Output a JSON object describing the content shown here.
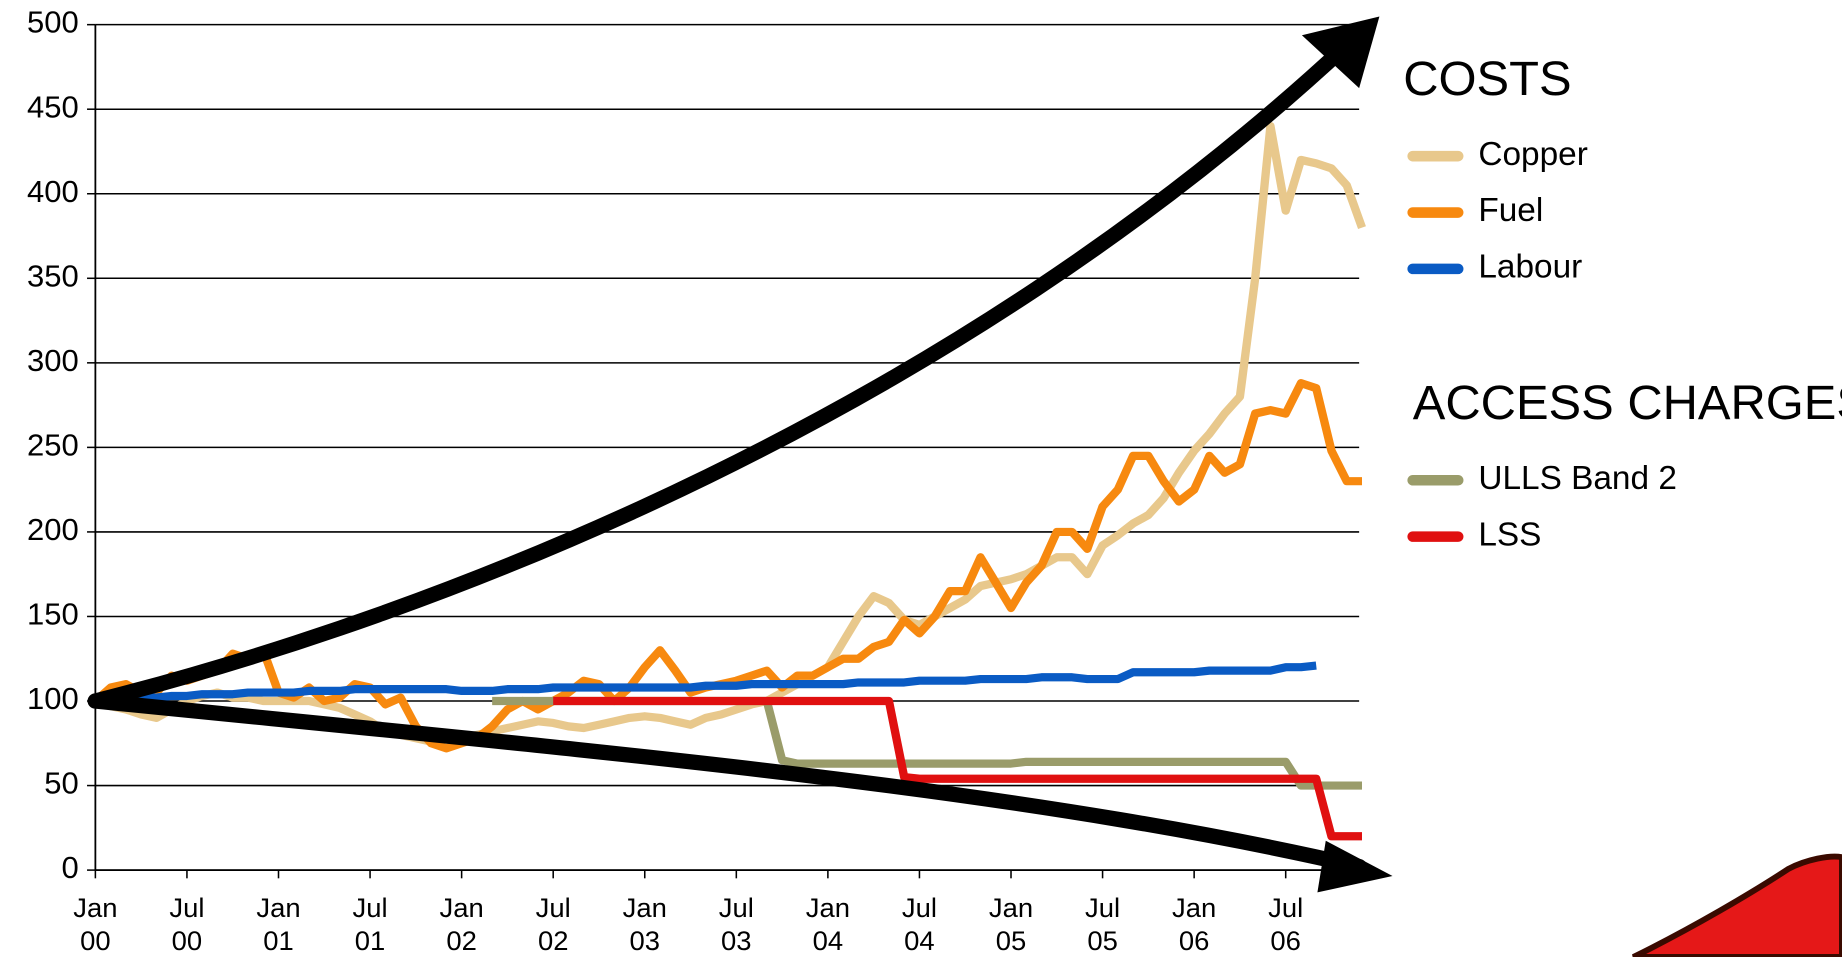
{
  "chart_data": {
    "type": "line",
    "categories": [
      "Jan 00",
      null,
      null,
      null,
      null,
      null,
      "Jul 00",
      null,
      null,
      null,
      null,
      null,
      "Jan 01",
      null,
      null,
      null,
      null,
      null,
      "Jul 01",
      null,
      null,
      null,
      null,
      null,
      "Jan 02",
      null,
      null,
      null,
      null,
      null,
      "Jul 02",
      null,
      null,
      null,
      null,
      null,
      "Jan 03",
      null,
      null,
      null,
      null,
      null,
      "Jul 03",
      null,
      null,
      null,
      null,
      null,
      "Jan 04",
      null,
      null,
      null,
      null,
      null,
      "Jul 04",
      null,
      null,
      null,
      null,
      null,
      "Jan 05",
      null,
      null,
      null,
      null,
      null,
      "Jul 05",
      null,
      null,
      null,
      null,
      null,
      "Jan 06",
      null,
      null,
      null,
      null,
      null,
      "Jul 06",
      null,
      null,
      null,
      null,
      null
    ],
    "ylim": [
      0,
      500
    ],
    "yticks": [
      0,
      50,
      100,
      150,
      200,
      250,
      300,
      350,
      400,
      450,
      500
    ],
    "grid": true,
    "series_groups": [
      {
        "title": "COSTS",
        "series": [
          {
            "name": "Copper",
            "color": "#e8c88c",
            "values": [
              100,
              97,
              95,
              92,
              90,
              95,
              100,
              103,
              105,
              102,
              102,
              100,
              100,
              100,
              100,
              98,
              96,
              92,
              88,
              82,
              80,
              78,
              76,
              76,
              78,
              80,
              82,
              84,
              86,
              88,
              87,
              85,
              84,
              86,
              88,
              90,
              91,
              90,
              88,
              86,
              90,
              92,
              95,
              98,
              100,
              105,
              110,
              115,
              120,
              135,
              150,
              162,
              158,
              148,
              145,
              150,
              155,
              160,
              168,
              170,
              172,
              175,
              180,
              185,
              185,
              175,
              192,
              198,
              205,
              210,
              220,
              235,
              248,
              258,
              270,
              280,
              350,
              440,
              390,
              420,
              418,
              415,
              405,
              380
            ]
          },
          {
            "name": "Fuel",
            "color": "#f7890f",
            "values": [
              100,
              108,
              110,
              105,
              105,
              115,
              112,
              115,
              118,
              128,
              125,
              130,
              105,
              102,
              108,
              100,
              102,
              110,
              108,
              98,
              102,
              85,
              75,
              72,
              75,
              78,
              85,
              95,
              100,
              95,
              100,
              105,
              112,
              110,
              100,
              108,
              120,
              130,
              118,
              105,
              108,
              110,
              112,
              115,
              118,
              108,
              115,
              115,
              120,
              125,
              125,
              132,
              135,
              148,
              140,
              150,
              165,
              165,
              185,
              170,
              155,
              170,
              180,
              200,
              200,
              190,
              215,
              225,
              245,
              245,
              230,
              218,
              225,
              245,
              235,
              240,
              270,
              272,
              270,
              288,
              285,
              248,
              230,
              230
            ]
          },
          {
            "name": "Labour",
            "color": "#0a5bc4",
            "values": [
              100,
              101,
              102,
              102,
              102,
              103,
              103,
              104,
              104,
              104,
              105,
              105,
              105,
              105,
              106,
              106,
              106,
              107,
              107,
              107,
              107,
              107,
              107,
              107,
              106,
              106,
              106,
              107,
              107,
              107,
              108,
              108,
              108,
              108,
              108,
              108,
              108,
              108,
              108,
              108,
              109,
              109,
              109,
              110,
              110,
              110,
              110,
              110,
              110,
              110,
              111,
              111,
              111,
              111,
              112,
              112,
              112,
              112,
              113,
              113,
              113,
              113,
              114,
              114,
              114,
              113,
              113,
              113,
              117,
              117,
              117,
              117,
              117,
              118,
              118,
              118,
              118,
              118,
              120,
              120,
              121,
              null,
              null,
              null
            ]
          }
        ]
      },
      {
        "title": "ACCESS CHARGES",
        "series": [
          {
            "name": "ULLS Band 2",
            "color": "#9a9c6a",
            "values": [
              null,
              null,
              null,
              null,
              null,
              null,
              null,
              null,
              null,
              null,
              null,
              null,
              null,
              null,
              null,
              null,
              null,
              null,
              null,
              null,
              null,
              null,
              null,
              null,
              null,
              null,
              100,
              100,
              100,
              100,
              100,
              100,
              100,
              100,
              100,
              100,
              100,
              100,
              100,
              100,
              100,
              100,
              100,
              100,
              100,
              65,
              63,
              63,
              63,
              63,
              63,
              63,
              63,
              63,
              63,
              63,
              63,
              63,
              63,
              63,
              63,
              64,
              64,
              64,
              64,
              64,
              64,
              64,
              64,
              64,
              64,
              64,
              64,
              64,
              64,
              64,
              64,
              64,
              64,
              50,
              50,
              50,
              50,
              50
            ]
          },
          {
            "name": "LSS",
            "color": "#e01010",
            "values": [
              null,
              null,
              null,
              null,
              null,
              null,
              null,
              null,
              null,
              null,
              null,
              null,
              null,
              null,
              null,
              null,
              null,
              null,
              null,
              null,
              null,
              null,
              null,
              null,
              null,
              null,
              null,
              null,
              null,
              null,
              100,
              100,
              100,
              100,
              100,
              100,
              100,
              100,
              100,
              100,
              100,
              100,
              100,
              100,
              100,
              100,
              100,
              100,
              100,
              100,
              100,
              100,
              100,
              55,
              54,
              54,
              54,
              54,
              54,
              54,
              54,
              54,
              54,
              54,
              54,
              54,
              54,
              54,
              54,
              54,
              54,
              54,
              54,
              54,
              54,
              54,
              54,
              54,
              54,
              54,
              54,
              20,
              20,
              20
            ]
          }
        ]
      }
    ]
  }
}
